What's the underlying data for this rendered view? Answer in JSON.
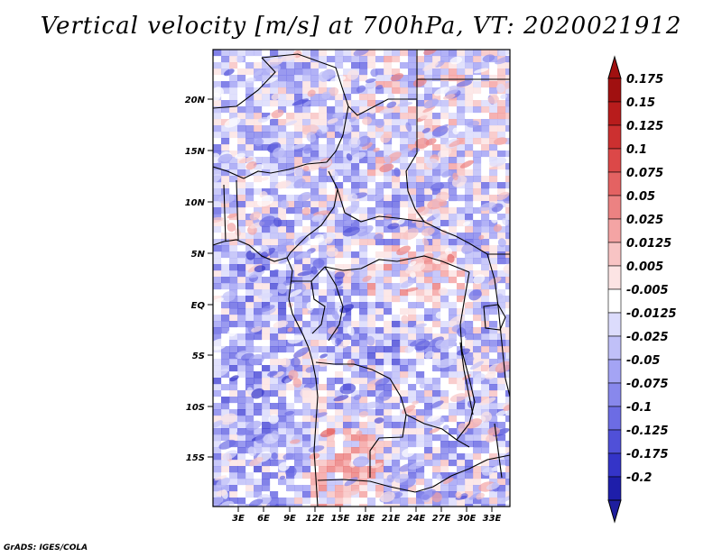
{
  "title": "Vertical velocity [m/s] at 700hPa, VT: 2020021912",
  "credit": "GrADS: IGES/COLA",
  "map": {
    "variable": "Vertical velocity",
    "units": "m/s",
    "level": "700hPa",
    "valid_time": "2020021912",
    "lat_labels": [
      "20N",
      "15N",
      "10N",
      "5N",
      "EQ",
      "5S",
      "10S",
      "15S"
    ],
    "lon_labels": [
      "3E",
      "6E",
      "9E",
      "12E",
      "15E",
      "18E",
      "21E",
      "24E",
      "27E",
      "30E",
      "33E"
    ]
  },
  "colorbar": {
    "levels": [
      "0.175",
      "0.15",
      "0.125",
      "0.1",
      "0.075",
      "0.05",
      "0.025",
      "0.0125",
      "0.005",
      "-0.005",
      "-0.0125",
      "-0.025",
      "-0.05",
      "-0.075",
      "-0.1",
      "-0.125",
      "-0.175",
      "-0.2"
    ],
    "colors": [
      "#a01010",
      "#b81c1c",
      "#cc3030",
      "#dc4848",
      "#e46262",
      "#ec8282",
      "#f4a4a4",
      "#f8c4c4",
      "#fce4e4",
      "#ffffff",
      "#dcdcfc",
      "#c0c0f8",
      "#a4a4f4",
      "#8888ec",
      "#6c6ce4",
      "#5050d8",
      "#3434c8",
      "#1e1eaa",
      "#0f0f8c"
    ],
    "top_arrow_color": "#a01010",
    "bottom_arrow_color": "#1e1e9e"
  }
}
